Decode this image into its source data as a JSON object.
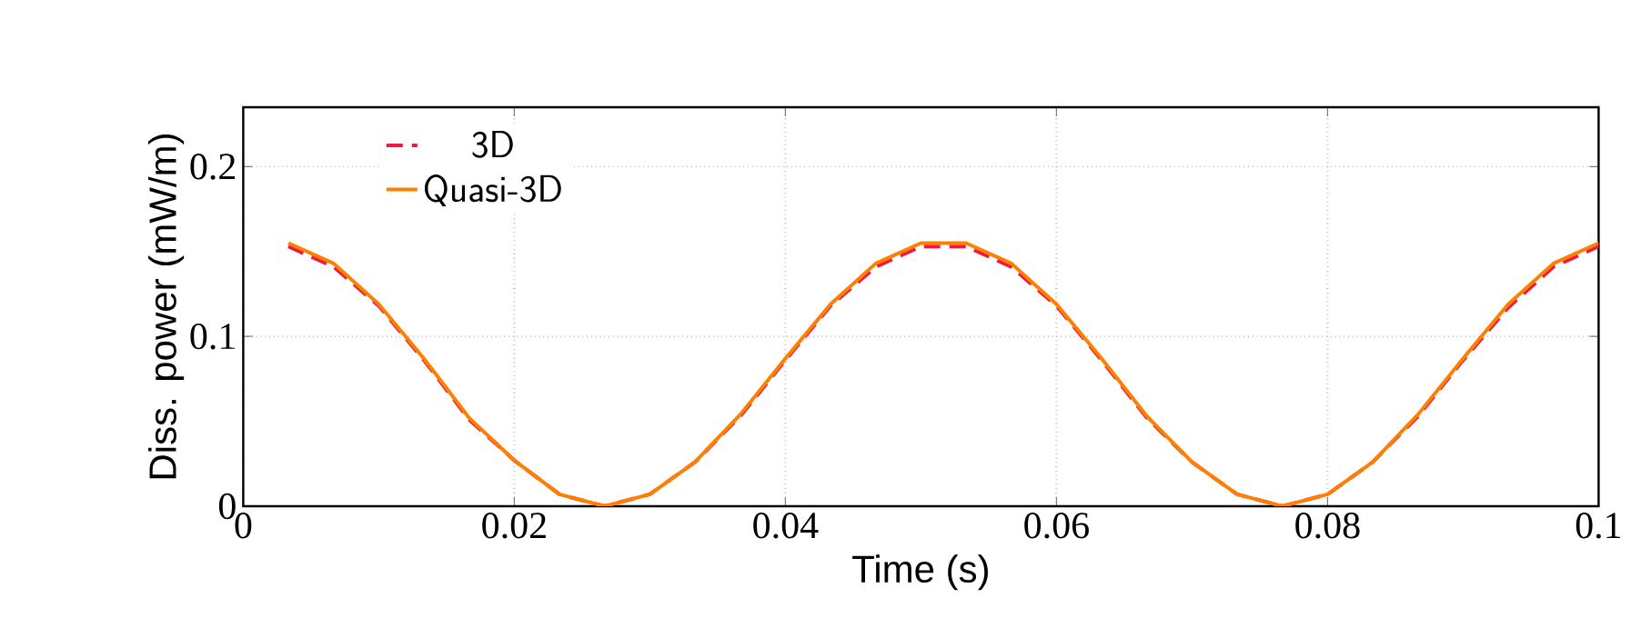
{
  "chart_data": {
    "type": "line",
    "xlabel": "Time (s)",
    "ylabel": "Diss. power (mW/m)",
    "xlim": [
      0,
      0.1
    ],
    "ylim": [
      0,
      0.235
    ],
    "xticks": [
      0,
      0.02,
      0.04,
      0.06,
      0.08,
      0.1
    ],
    "yticks": [
      0,
      0.1,
      0.2
    ],
    "grid": true,
    "legend": "top left",
    "series": [
      {
        "name": "3D",
        "color": "#f0183c",
        "line_style": "dashed",
        "x": [
          0.00333,
          0.00667,
          0.01,
          0.01333,
          0.01667,
          0.02,
          0.02333,
          0.02667,
          0.03,
          0.03333,
          0.03667,
          0.04,
          0.04333,
          0.04667,
          0.05,
          0.05333,
          0.05667,
          0.06,
          0.06333,
          0.06667,
          0.07,
          0.07333,
          0.07667,
          0.08,
          0.08333,
          0.08667,
          0.09,
          0.09333,
          0.09667,
          0.1
        ],
        "values": [
          0.153,
          0.141,
          0.118,
          0.086,
          0.051,
          0.027,
          0.007,
          0,
          0.007,
          0.026,
          0.053,
          0.086,
          0.118,
          0.141,
          0.153,
          0.153,
          0.141,
          0.118,
          0.086,
          0.052,
          0.026,
          0.007,
          0,
          0.007,
          0.026,
          0.053,
          0.086,
          0.117,
          0.141,
          0.153
        ]
      },
      {
        "name": "Quasi-3D",
        "color": "#ff8000",
        "line_style": "solid",
        "x": [
          0.00333,
          0.00667,
          0.01,
          0.01333,
          0.01667,
          0.02,
          0.02333,
          0.02667,
          0.03,
          0.03333,
          0.03667,
          0.04,
          0.04333,
          0.04667,
          0.05,
          0.05333,
          0.05667,
          0.06,
          0.06333,
          0.06667,
          0.07,
          0.07333,
          0.07667,
          0.08,
          0.08333,
          0.08667,
          0.09,
          0.09333,
          0.09667,
          0.1
        ],
        "values": [
          0.155,
          0.143,
          0.119,
          0.087,
          0.052,
          0.027,
          0.007,
          0,
          0.007,
          0.026,
          0.054,
          0.087,
          0.119,
          0.143,
          0.155,
          0.155,
          0.143,
          0.119,
          0.087,
          0.053,
          0.026,
          0.007,
          0,
          0.007,
          0.026,
          0.054,
          0.087,
          0.119,
          0.143,
          0.155
        ]
      }
    ]
  }
}
